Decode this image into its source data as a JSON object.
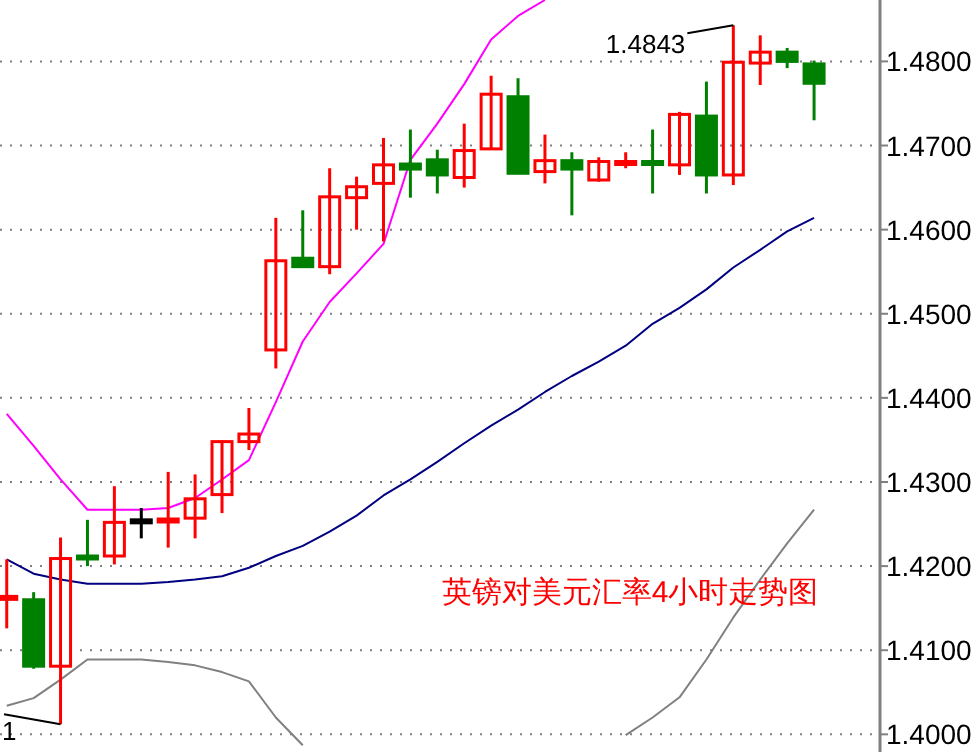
{
  "chart_data": {
    "type": "candlestick",
    "categories": [
      null,
      null,
      null,
      null,
      null,
      null,
      null,
      null,
      null,
      null,
      null,
      null,
      null,
      null,
      null,
      null,
      null,
      null,
      null,
      null,
      null,
      null,
      null,
      null,
      null,
      null,
      null,
      null,
      null,
      null,
      null
    ],
    "ohlc": [
      [
        1.4164,
        1.4208,
        1.4126,
        1.4164
      ],
      [
        1.416,
        1.4169,
        1.4078,
        1.4081
      ],
      [
        1.4081,
        1.4234,
        1.4012,
        1.4209
      ],
      [
        1.4212,
        1.4255,
        1.42,
        1.4212
      ],
      [
        1.4212,
        1.4295,
        1.4202,
        1.4252
      ],
      [
        1.4255,
        1.4269,
        1.4233,
        1.4255
      ],
      [
        1.4255,
        1.4312,
        1.4222,
        1.4256
      ],
      [
        1.4257,
        1.4309,
        1.4233,
        1.428
      ],
      [
        1.4285,
        1.4348,
        1.4263,
        1.4348
      ],
      [
        1.4348,
        1.4388,
        1.4338,
        1.4357
      ],
      [
        1.4457,
        1.4614,
        1.4435,
        1.4563
      ],
      [
        1.4566,
        1.4623,
        1.4556,
        1.4556
      ],
      [
        1.4556,
        1.4673,
        1.4547,
        1.4639
      ],
      [
        1.4638,
        1.4663,
        1.46,
        1.4651
      ],
      [
        1.4655,
        1.4709,
        1.4586,
        1.4677
      ],
      [
        1.4678,
        1.4719,
        1.4638,
        1.4672
      ],
      [
        1.4683,
        1.4695,
        1.4643,
        1.4665
      ],
      [
        1.4662,
        1.4726,
        1.465,
        1.4694
      ],
      [
        1.4696,
        1.4783,
        1.4696,
        1.4761
      ],
      [
        1.4758,
        1.478,
        1.4667,
        1.4667
      ],
      [
        1.4669,
        1.4713,
        1.4655,
        1.4682
      ],
      [
        1.4682,
        1.4692,
        1.4617,
        1.4672
      ],
      [
        1.4659,
        1.4686,
        1.4657,
        1.4681
      ],
      [
        1.468,
        1.4692,
        1.4673,
        1.4681
      ],
      [
        1.4681,
        1.4719,
        1.4643,
        1.468
      ],
      [
        1.4677,
        1.474,
        1.4665,
        1.4737
      ],
      [
        1.4735,
        1.4776,
        1.4643,
        1.4665
      ],
      [
        1.4665,
        1.4843,
        1.4653,
        1.4799
      ],
      [
        1.4798,
        1.4831,
        1.4772,
        1.4811
      ],
      [
        1.4811,
        1.4816,
        1.4792,
        1.48
      ],
      [
        1.4797,
        1.4801,
        1.473,
        1.4774
      ]
    ],
    "colors": [
      "#ff0000",
      "#008000",
      "#ff0000",
      "#008000",
      "#ff0000",
      "#000000",
      "#ff0000",
      "#ff0000",
      "#ff0000",
      "#ff0000",
      "#ff0000",
      "#008000",
      "#ff0000",
      "#ff0000",
      "#ff0000",
      "#008000",
      "#008000",
      "#ff0000",
      "#ff0000",
      "#008000",
      "#ff0000",
      "#008000",
      "#ff0000",
      "#ff0000",
      "#008000",
      "#ff0000",
      "#008000",
      "#ff0000",
      "#ff0000",
      "#008000",
      "#008000"
    ],
    "series": [
      {
        "type": "line",
        "color": "#ff00ff",
        "values": [
          1.4381,
          1.4343,
          1.4303,
          1.4267,
          1.4267,
          1.4267,
          1.4269,
          1.4281,
          1.4303,
          1.4326,
          1.4395,
          1.4467,
          1.4514,
          1.4548,
          1.4583,
          1.4683,
          1.4726,
          1.4773,
          1.4826,
          1.4854,
          1.4873,
          null,
          null,
          null,
          null,
          null,
          null,
          null,
          null,
          null,
          null
        ]
      },
      {
        "type": "line",
        "color": "#000080",
        "values": [
          1.4208,
          1.4191,
          1.4184,
          1.4179,
          1.4179,
          1.4179,
          1.4181,
          1.4184,
          1.4188,
          1.4198,
          1.4212,
          1.4224,
          1.4241,
          1.426,
          1.4284,
          1.4303,
          1.4324,
          1.4346,
          1.4367,
          1.4386,
          1.4407,
          1.4426,
          1.4443,
          1.4462,
          1.4488,
          1.4507,
          1.4529,
          1.4555,
          1.4576,
          1.4598,
          1.4614
        ]
      },
      {
        "type": "line",
        "color": "#808080",
        "values": [
          1.4034,
          1.4043,
          1.4065,
          1.4089,
          1.4089,
          1.4089,
          1.4086,
          1.4082,
          1.4074,
          1.4063,
          1.402,
          1.3987,
          null,
          null,
          null,
          null,
          null,
          null,
          null,
          null,
          null,
          null,
          null,
          1.3999,
          1.402,
          1.4044,
          1.4089,
          1.4139,
          1.4184,
          1.4227,
          1.4267
        ]
      }
    ],
    "ylim": [
      1.3979,
      1.4873
    ],
    "yticks": [
      {
        "value": 1.4,
        "label": "1.4000"
      },
      {
        "value": 1.41,
        "label": "1.4100"
      },
      {
        "value": 1.42,
        "label": "1.4200"
      },
      {
        "value": 1.43,
        "label": "1.4300"
      },
      {
        "value": 1.44,
        "label": "1.4400"
      },
      {
        "value": 1.45,
        "label": "1.4500"
      },
      {
        "value": 1.46,
        "label": "1.4600"
      },
      {
        "value": 1.47,
        "label": "1.4700"
      },
      {
        "value": 1.48,
        "label": "1.4800"
      }
    ],
    "grid": "y",
    "tick_labels": "y",
    "annotations": [
      "1.4843",
      "1",
      "英镑对美元汇率4小时走势图"
    ]
  }
}
